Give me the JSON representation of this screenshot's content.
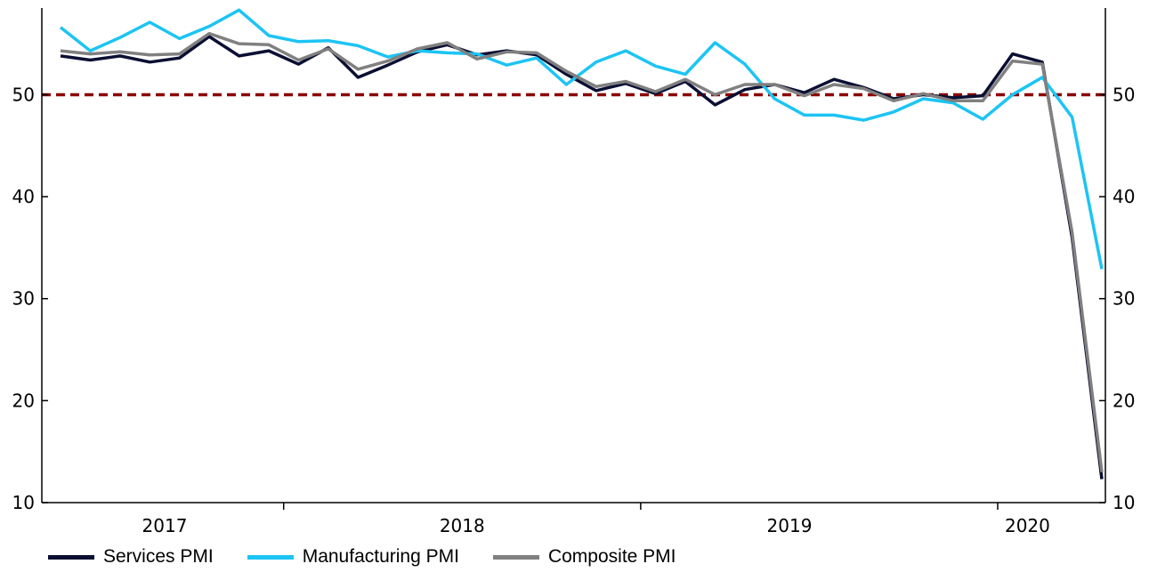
{
  "chart_data": {
    "type": "line",
    "title": "",
    "xlabel": "",
    "ylabel": "",
    "ylim": [
      10,
      58.5
    ],
    "y_ticks": [
      10,
      20,
      30,
      40,
      50
    ],
    "y_tick_labels": [
      "10",
      "20",
      "30",
      "40",
      "50"
    ],
    "x_tick_labels": [
      "2017",
      "2018",
      "2019",
      "2020"
    ],
    "x_label_positions": [
      3.5,
      13.5,
      24.5,
      32.5
    ],
    "x_tick_marks": [
      7.5,
      19.5,
      31.5
    ],
    "reference_line": {
      "value": 50,
      "color": "#8B0000"
    },
    "series": [
      {
        "name": "Services PMI",
        "color": "#0B0F33",
        "values": [
          53.8,
          53.4,
          53.8,
          53.2,
          53.6,
          55.7,
          53.8,
          54.3,
          53.0,
          54.6,
          51.7,
          52.9,
          54.2,
          54.9,
          53.9,
          54.3,
          53.9,
          52.0,
          50.4,
          51.1,
          50.1,
          51.3,
          49.0,
          50.5,
          51.0,
          50.2,
          51.5,
          50.7,
          49.6,
          50.0,
          49.7,
          49.9,
          54.0,
          53.2,
          36.0,
          12.3
        ]
      },
      {
        "name": "Manufacturing PMI",
        "color": "#1CC4F4",
        "values": [
          56.6,
          54.3,
          55.6,
          57.1,
          55.5,
          56.7,
          58.3,
          55.8,
          55.2,
          55.3,
          54.8,
          53.7,
          54.3,
          54.1,
          54.0,
          52.9,
          53.6,
          51.0,
          53.2,
          54.3,
          52.8,
          52.0,
          55.1,
          53.0,
          49.6,
          48.0,
          48.0,
          47.5,
          48.3,
          49.6,
          49.2,
          47.6,
          50.0,
          51.7,
          47.8,
          32.9
        ]
      },
      {
        "name": "Composite PMI",
        "color": "#808080",
        "values": [
          54.3,
          54.0,
          54.2,
          53.9,
          54.0,
          56.0,
          55.0,
          54.9,
          53.4,
          54.5,
          52.5,
          53.3,
          54.5,
          55.1,
          53.5,
          54.2,
          54.1,
          52.3,
          50.8,
          51.3,
          50.3,
          51.5,
          50.0,
          51.0,
          51.0,
          49.9,
          51.0,
          50.6,
          49.4,
          50.1,
          49.4,
          49.4,
          53.3,
          53.0,
          36.5,
          13.0
        ]
      }
    ]
  }
}
